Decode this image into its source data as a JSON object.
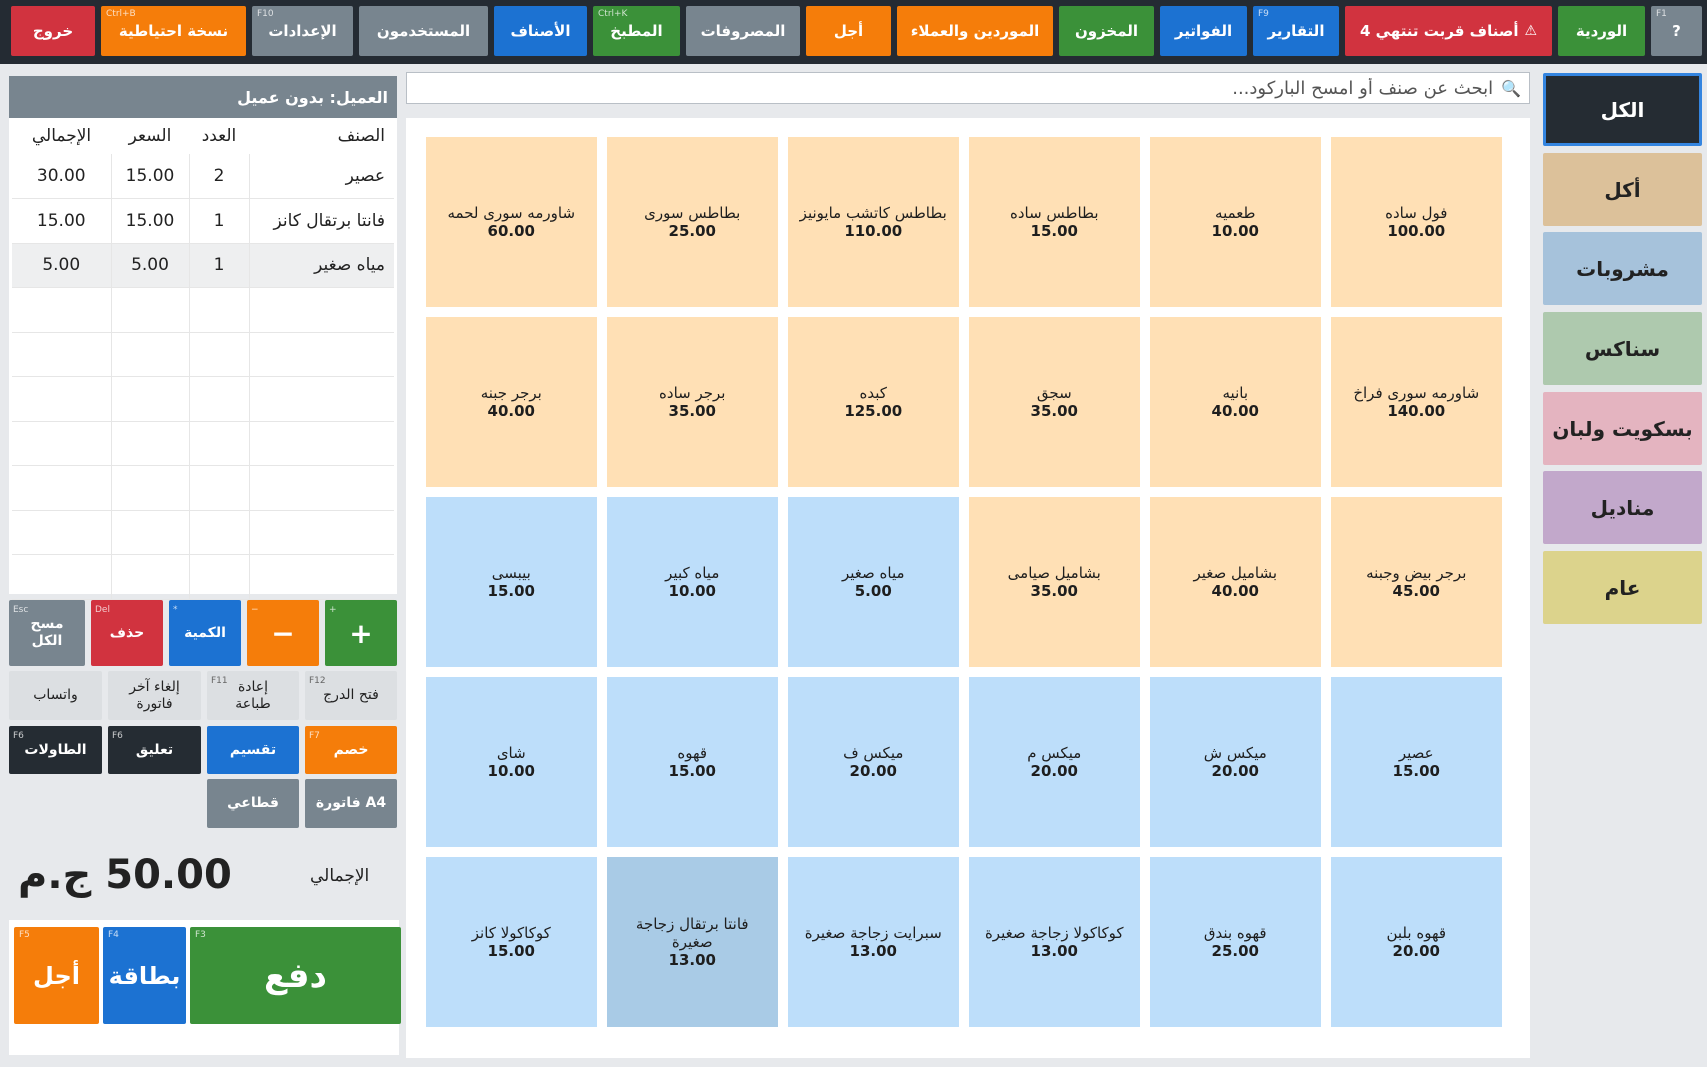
{
  "toolbar": {
    "help": {
      "label": "?",
      "key": "F1"
    },
    "shift": {
      "label": "الوردية"
    },
    "alert": {
      "label": "4 أصناف قربت تنتهي",
      "icon": "warning-icon"
    },
    "reports": {
      "label": "التقارير",
      "key": "F9"
    },
    "invoices": {
      "label": "الفواتير"
    },
    "inventory": {
      "label": "المخزون"
    },
    "suppliers": {
      "label": "الموردين والعملاء"
    },
    "deferred": {
      "label": "أجل"
    },
    "expenses": {
      "label": "المصروفات"
    },
    "kitchen": {
      "label": "المطبخ",
      "key": "Ctrl+K"
    },
    "items": {
      "label": "الأصناف"
    },
    "users": {
      "label": "المستخدمون"
    },
    "settings": {
      "label": "الإعدادات",
      "key": "F10"
    },
    "backup": {
      "label": "نسخة احتياطية",
      "key": "Ctrl+B"
    },
    "exit": {
      "label": "خروج"
    }
  },
  "categories": [
    "الكل",
    "أكل",
    "مشروبات",
    "سناكس",
    "بسكويت ولبان",
    "مناديل",
    "عام"
  ],
  "category_colors": [
    "#252c33",
    "#dcc19a",
    "#a6c2db",
    "#aec9ae",
    "#e4b4c0",
    "#c2a8cb",
    "#dcd38c"
  ],
  "search": {
    "placeholder": "ابحث عن صنف أو امسح الباركود..."
  },
  "products": [
    {
      "name": "فول ساده",
      "price": "100.00",
      "kind": "food"
    },
    {
      "name": "طعميه",
      "price": "10.00",
      "kind": "food"
    },
    {
      "name": "بطاطس ساده",
      "price": "15.00",
      "kind": "food"
    },
    {
      "name": "بطاطس كاتشب مايونيز",
      "price": "110.00",
      "kind": "food"
    },
    {
      "name": "بطاطس سورى",
      "price": "25.00",
      "kind": "food"
    },
    {
      "name": "شاورمه سورى لحمه",
      "price": "60.00",
      "kind": "food"
    },
    {
      "name": "شاورمه سورى فراخ",
      "price": "140.00",
      "kind": "food"
    },
    {
      "name": "بانيه",
      "price": "40.00",
      "kind": "food"
    },
    {
      "name": "سجق",
      "price": "35.00",
      "kind": "food"
    },
    {
      "name": "كبده",
      "price": "125.00",
      "kind": "food"
    },
    {
      "name": "برجر ساده",
      "price": "35.00",
      "kind": "food"
    },
    {
      "name": "برجر جبنه",
      "price": "40.00",
      "kind": "food"
    },
    {
      "name": "برجر بيض وجبنه",
      "price": "45.00",
      "kind": "food"
    },
    {
      "name": "بشاميل صغير",
      "price": "40.00",
      "kind": "food"
    },
    {
      "name": "بشاميل صيامى",
      "price": "35.00",
      "kind": "food"
    },
    {
      "name": "مياه صغير",
      "price": "5.00",
      "kind": "drink"
    },
    {
      "name": "مياه كبير",
      "price": "10.00",
      "kind": "drink"
    },
    {
      "name": "بيبسى",
      "price": "15.00",
      "kind": "drink"
    },
    {
      "name": "عصير",
      "price": "15.00",
      "kind": "drink"
    },
    {
      "name": "ميكس ش",
      "price": "20.00",
      "kind": "drink"
    },
    {
      "name": "ميكس م",
      "price": "20.00",
      "kind": "drink"
    },
    {
      "name": "ميكس ف",
      "price": "20.00",
      "kind": "drink"
    },
    {
      "name": "قهوه",
      "price": "15.00",
      "kind": "drink"
    },
    {
      "name": "شاى",
      "price": "10.00",
      "kind": "drink"
    },
    {
      "name": "قهوه بلبن",
      "price": "20.00",
      "kind": "drink"
    },
    {
      "name": "قهوه بندق",
      "price": "25.00",
      "kind": "drink"
    },
    {
      "name": "كوكاكولا زجاجة صغيرة",
      "price": "13.00",
      "kind": "drink"
    },
    {
      "name": "سبرايت زجاجة صغيرة",
      "price": "13.00",
      "kind": "drink"
    },
    {
      "name": "فانتا برتقال زجاجة صغيرة",
      "price": "13.00",
      "kind": "drink",
      "selected": true
    },
    {
      "name": "كوكاكولا كانز",
      "price": "15.00",
      "kind": "drink"
    }
  ],
  "invoice": {
    "customer": "العميل: بدون عميل",
    "headers": {
      "item": "الصنف",
      "qty": "العدد",
      "price": "السعر",
      "total": "الإجمالي"
    },
    "lines": [
      {
        "item": "عصير",
        "qty": "2",
        "price": "15.00",
        "total": "30.00"
      },
      {
        "item": "فانتا برتقال كانز",
        "qty": "1",
        "price": "15.00",
        "total": "15.00"
      },
      {
        "item": "مياه صغير",
        "qty": "1",
        "price": "5.00",
        "total": "5.00",
        "selected": true
      }
    ]
  },
  "actions": {
    "plus": {
      "label": "+",
      "key": "+"
    },
    "minus": {
      "label": "−",
      "key": "−"
    },
    "quantity": {
      "label": "الكمية",
      "key": "*"
    },
    "delete": {
      "label": "حذف",
      "key": "Del"
    },
    "clear_all": {
      "label": "مسح الكل",
      "key": "Esc"
    },
    "open_drawer": {
      "label": "فتح الدرج",
      "key": "F12"
    },
    "reprint": {
      "label": "إعادة طباعة",
      "key": "F11"
    },
    "cancel_last": {
      "label": "إلغاء آخر فاتورة"
    },
    "whatsapp": {
      "label": "واتساب"
    },
    "discount": {
      "label": "خصم",
      "key": "F7"
    },
    "split": {
      "label": "تقسيم"
    },
    "hold": {
      "label": "تعليق",
      "key": "F6"
    },
    "tables": {
      "label": "الطاولات",
      "key": "F6"
    },
    "a4_invoice": {
      "label": "فاتورة A4"
    },
    "wholesale": {
      "label": "قطاعي"
    }
  },
  "total": {
    "label": "الإجمالي",
    "value": "50.00 ج.م"
  },
  "payment": {
    "pay": {
      "label": "دفع",
      "key": "F3"
    },
    "card": {
      "label": "بطاقة",
      "key": "F4"
    },
    "deferred": {
      "label": "أجل",
      "key": "F5"
    }
  }
}
